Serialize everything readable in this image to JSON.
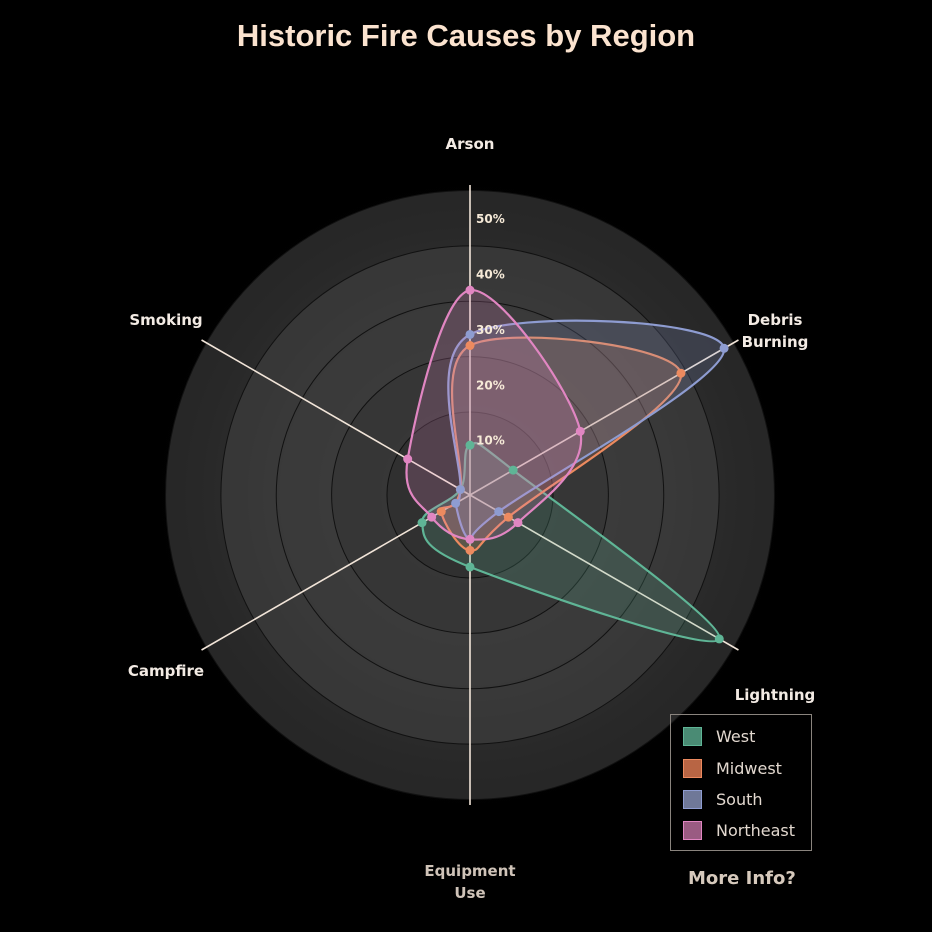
{
  "chart_data": {
    "type": "radar",
    "title": "Historic Fire Causes by Region",
    "axes": [
      "Arson",
      "Debris Burning",
      "Lightning",
      "Equipment Use",
      "Campfire",
      "Smoking"
    ],
    "axis_lines": [
      [
        "Arson"
      ],
      [
        "Debris",
        "Burning"
      ],
      [
        "Lightning"
      ],
      [
        "Equipment",
        "Use"
      ],
      [
        "Campfire"
      ],
      [
        "Smoking"
      ]
    ],
    "radial_ticks": [
      "10%",
      "20%",
      "30%",
      "40%",
      "50%"
    ],
    "radial_tick_values": [
      10,
      20,
      30,
      40,
      50
    ],
    "rmax": 56,
    "series": [
      {
        "name": "West",
        "values": [
          9,
          9,
          52,
          13,
          10,
          2
        ],
        "color": "#5fb596",
        "legend_color": "#4a8b74"
      },
      {
        "name": "Midwest",
        "values": [
          27,
          44,
          8,
          10,
          6,
          2
        ],
        "color": "#ec8a5f",
        "legend_color": "#b86544"
      },
      {
        "name": "South",
        "values": [
          29,
          53,
          6,
          8,
          3,
          2
        ],
        "color": "#8e9cd1",
        "legend_color": "#6f7898"
      },
      {
        "name": "Northeast",
        "values": [
          37,
          23,
          10,
          8,
          8,
          13
        ],
        "color": "#e186c2",
        "legend_color": "#9a5b82"
      }
    ]
  },
  "legend": {
    "title": "",
    "items": [
      "West",
      "Midwest",
      "South",
      "Northeast"
    ]
  },
  "more_info": "More Info?"
}
